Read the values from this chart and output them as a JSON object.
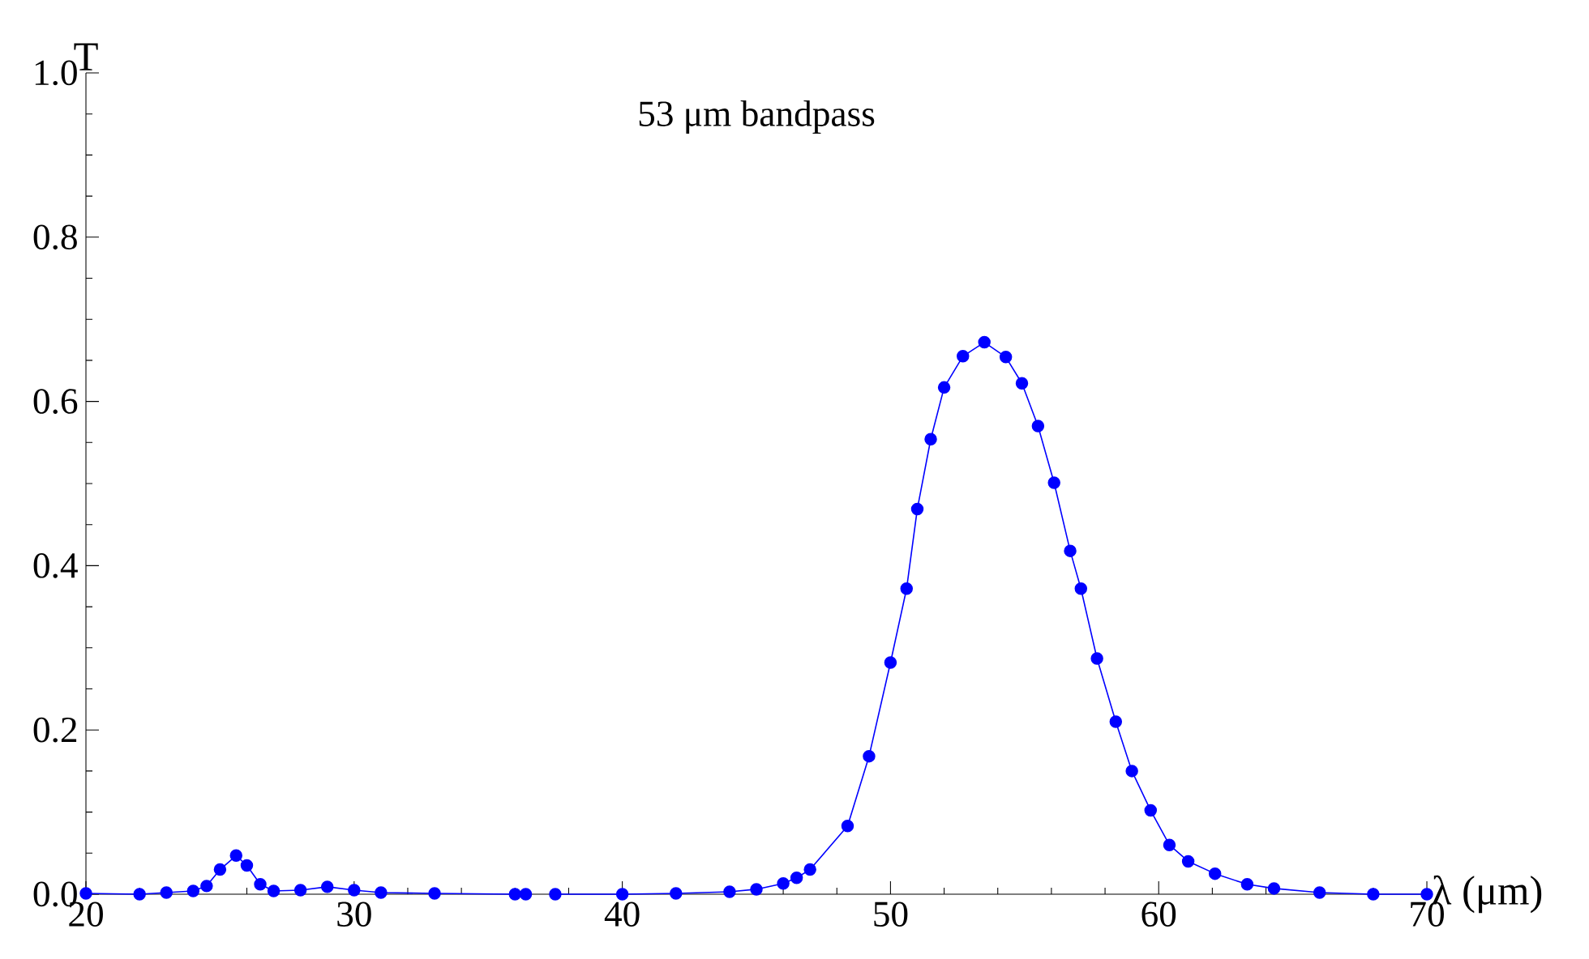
{
  "chart_data": {
    "type": "line",
    "title": "53 μm bandpass",
    "xlabel": "λ (μm)",
    "ylabel": "T",
    "x": [
      20,
      22,
      23,
      24,
      24.5,
      25,
      25.6,
      26,
      26.5,
      27,
      28,
      29,
      30,
      31,
      33,
      36,
      36.4,
      37,
      37.5,
      40,
      42,
      44,
      45,
      46,
      46.5,
      47,
      48.4,
      49.2,
      50,
      50.6,
      51,
      51.5,
      52,
      52.7,
      53.5,
      54.3,
      54.9,
      55.5,
      56.1,
      56.7,
      57.1,
      57.7,
      58.4,
      59,
      59.7,
      60.4,
      61.1,
      62.1,
      63.3,
      64.3,
      66,
      68,
      70
    ],
    "series": [
      {
        "color": "#0000ff",
        "values": [
          0.001,
          0,
          0.002,
          0.004,
          0.01,
          0.03,
          0.047,
          0.035,
          0.012,
          0.004,
          0.005,
          0.009,
          0.005,
          0.002,
          0.001,
          0,
          0,
          null,
          0,
          0,
          0.001,
          0.003,
          0.006,
          0.013,
          0.02,
          0.03,
          0.083,
          0.168,
          0.282,
          0.372,
          0.469,
          0.554,
          0.617,
          0.655,
          0.672,
          0.654,
          0.622,
          0.57,
          0.501,
          0.418,
          0.372,
          0.287,
          0.21,
          0.15,
          0.102,
          0.06,
          0.04,
          0.025,
          0.012,
          0.007,
          0.002,
          0,
          0
        ]
      }
    ],
    "xlim": [
      20,
      70
    ],
    "ylim": [
      0,
      1
    ],
    "xticks": [
      20,
      30,
      40,
      50,
      60,
      70
    ],
    "yticks": [
      {
        "value": 0,
        "label": "0.0"
      },
      {
        "value": 0.2,
        "label": "0.2"
      },
      {
        "value": 0.4,
        "label": "0.4"
      },
      {
        "value": 0.6,
        "label": "0.6"
      },
      {
        "value": 0.8,
        "label": "0.8"
      },
      {
        "value": 1,
        "label": "1.0"
      }
    ],
    "marker": "circle",
    "line_style": "solid"
  }
}
